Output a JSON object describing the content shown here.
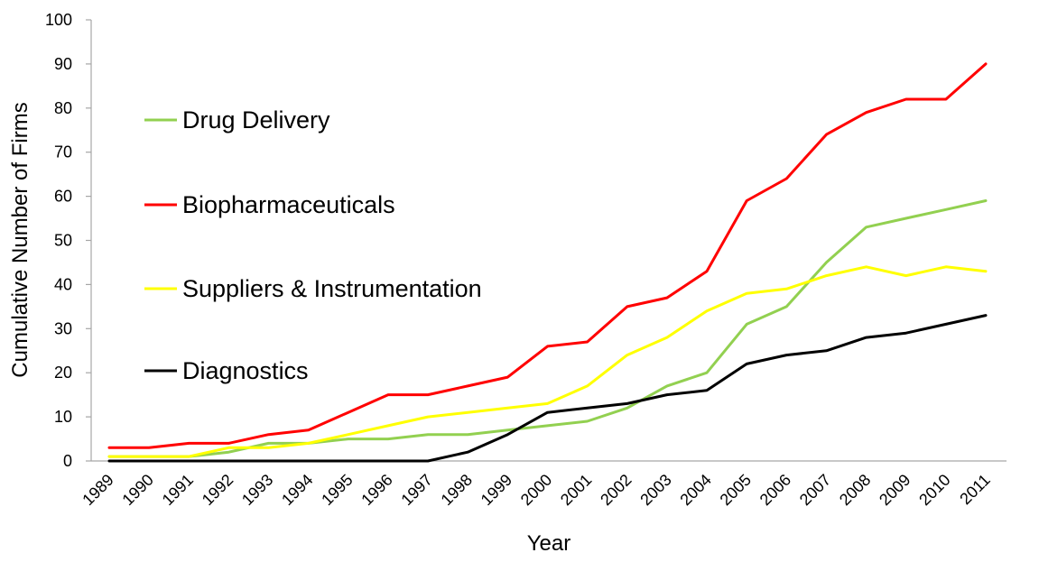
{
  "chart_data": {
    "type": "line",
    "xlabel": "Year",
    "ylabel": "Cumulative Number of Firms",
    "ylim": [
      0,
      100
    ],
    "yticks": [
      "0",
      "10",
      "20",
      "30",
      "40",
      "50",
      "60",
      "70",
      "80",
      "90",
      "100"
    ],
    "grid": false,
    "legend_position": "left",
    "categories": [
      "1989",
      "1990",
      "1991",
      "1992",
      "1993",
      "1994",
      "1995",
      "1996",
      "1997",
      "1998",
      "1999",
      "2000",
      "2001",
      "2002",
      "2003",
      "2004",
      "2005",
      "2006",
      "2007",
      "2008",
      "2009",
      "2010",
      "2011"
    ],
    "series": [
      {
        "name": "Drug Delivery",
        "color": "#92d050",
        "values": [
          1,
          1,
          1,
          2,
          4,
          4,
          5,
          5,
          6,
          6,
          7,
          8,
          9,
          12,
          17,
          20,
          31,
          35,
          45,
          53,
          55,
          57,
          59
        ]
      },
      {
        "name": "Biopharmaceuticals",
        "color": "#ff0000",
        "values": [
          3,
          3,
          4,
          4,
          6,
          7,
          11,
          15,
          15,
          17,
          19,
          26,
          27,
          35,
          37,
          43,
          59,
          64,
          74,
          79,
          82,
          82,
          90
        ]
      },
      {
        "name": "Suppliers & Instrumentation",
        "color": "#ffff00",
        "values": [
          1,
          1,
          1,
          3,
          3,
          4,
          6,
          8,
          10,
          11,
          12,
          13,
          17,
          24,
          28,
          34,
          38,
          39,
          42,
          44,
          42,
          44,
          43
        ]
      },
      {
        "name": "Diagnostics",
        "color": "#000000",
        "values": [
          0,
          0,
          0,
          0,
          0,
          0,
          0,
          0,
          0,
          2,
          6,
          11,
          12,
          13,
          15,
          16,
          22,
          24,
          25,
          28,
          29,
          31,
          33
        ]
      }
    ]
  }
}
